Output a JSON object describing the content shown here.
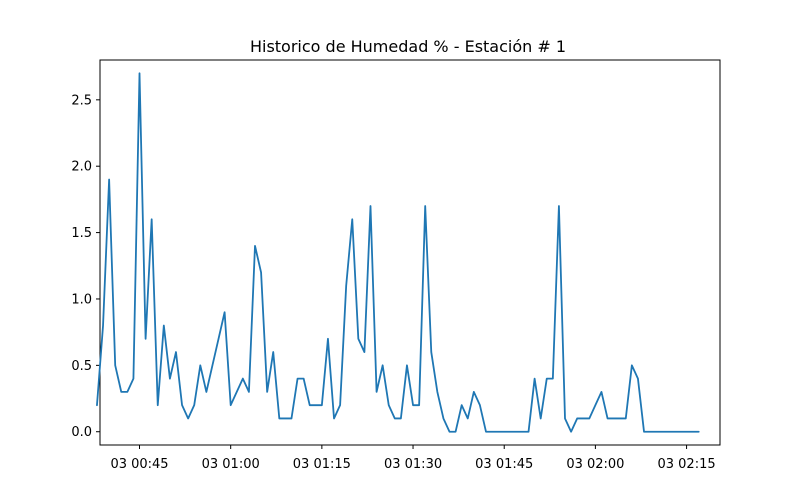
{
  "chart_data": {
    "type": "line",
    "title": "Historico de Humedad % - Estación # 1",
    "xlabel": "",
    "ylabel": "",
    "x_unit": "minutes",
    "x_range": [
      38.5,
      140.5
    ],
    "x_tick_values": [
      45,
      60,
      75,
      90,
      105,
      120,
      135
    ],
    "x_tick_labels": [
      "03 00:45",
      "03 01:00",
      "03 01:15",
      "03 01:30",
      "03 01:45",
      "03 02:00",
      "03 02:15"
    ],
    "ylim": [
      -0.1,
      2.8
    ],
    "y_tick_values": [
      0.0,
      0.5,
      1.0,
      1.5,
      2.0,
      2.5
    ],
    "y_tick_labels": [
      "0.0",
      "0.5",
      "1.0",
      "1.5",
      "2.0",
      "2.5"
    ],
    "grid": false,
    "series": [
      {
        "color": "#1f77b4",
        "x": [
          38,
          39,
          40,
          41,
          42,
          43,
          44,
          45,
          46,
          47,
          48,
          49,
          50,
          51,
          52,
          53,
          54,
          55,
          56,
          57,
          58,
          59,
          60,
          61,
          62,
          63,
          64,
          65,
          66,
          67,
          68,
          69,
          70,
          71,
          72,
          73,
          74,
          75,
          76,
          77,
          78,
          79,
          80,
          81,
          82,
          83,
          84,
          85,
          86,
          87,
          88,
          89,
          90,
          91,
          92,
          93,
          94,
          95,
          96,
          97,
          98,
          99,
          100,
          101,
          102,
          103,
          104,
          105,
          106,
          107,
          108,
          109,
          110,
          111,
          112,
          113,
          114,
          115,
          116,
          117,
          118,
          119,
          120,
          121,
          122,
          123,
          124,
          125,
          126,
          127,
          128,
          129,
          130,
          131,
          132,
          133,
          134,
          135,
          136,
          137
        ],
        "values": [
          0.2,
          0.8,
          1.9,
          0.5,
          0.3,
          0.3,
          0.4,
          2.7,
          0.7,
          1.6,
          0.2,
          0.8,
          0.4,
          0.6,
          0.2,
          0.1,
          0.2,
          0.5,
          0.3,
          0.5,
          0.7,
          0.9,
          0.2,
          0.3,
          0.4,
          0.3,
          1.4,
          1.2,
          0.3,
          0.6,
          0.1,
          0.1,
          0.1,
          0.4,
          0.4,
          0.2,
          0.2,
          0.2,
          0.7,
          0.1,
          0.2,
          1.1,
          1.6,
          0.7,
          0.6,
          1.7,
          0.3,
          0.5,
          0.2,
          0.1,
          0.1,
          0.5,
          0.2,
          0.2,
          1.7,
          0.6,
          0.3,
          0.1,
          0.0,
          0.0,
          0.2,
          0.1,
          0.3,
          0.2,
          0.0,
          0.0,
          0.0,
          0.0,
          0.0,
          0.0,
          0.0,
          0.0,
          0.4,
          0.1,
          0.4,
          0.4,
          1.7,
          0.1,
          0.0,
          0.1,
          0.1,
          0.1,
          0.2,
          0.3,
          0.1,
          0.1,
          0.1,
          0.1,
          0.5,
          0.4,
          0.0,
          0.0,
          0.0,
          0.0,
          0.0,
          0.0,
          0.0,
          0.0,
          0.0,
          0.0
        ]
      }
    ]
  }
}
